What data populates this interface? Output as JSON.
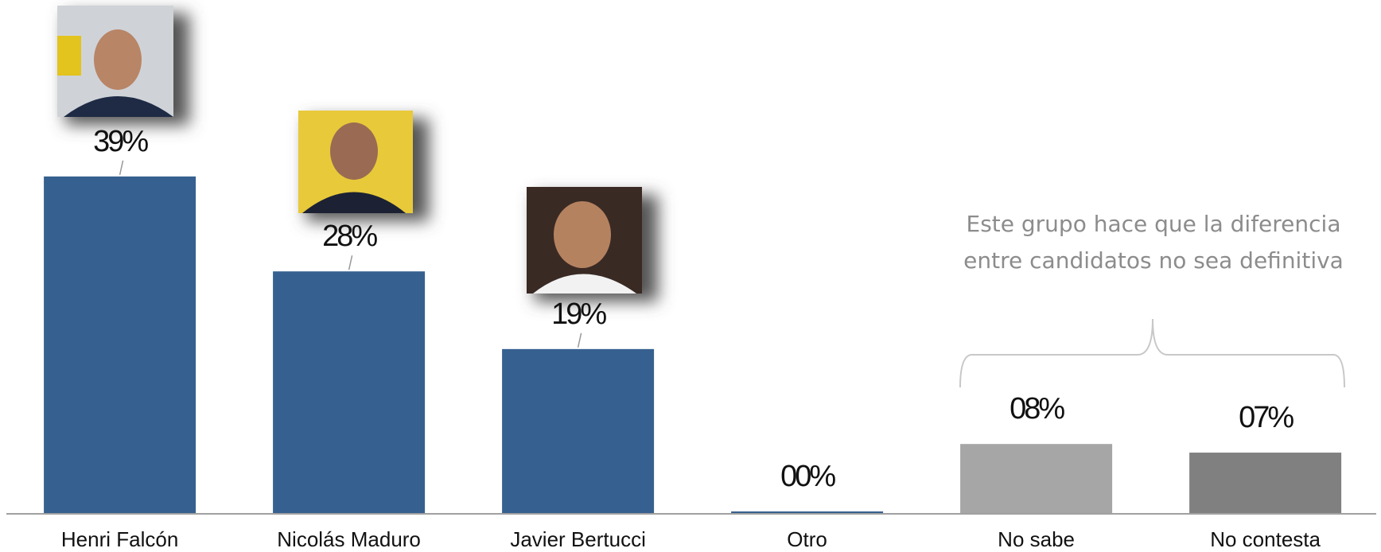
{
  "chart_data": {
    "type": "bar",
    "categories": [
      "Henri Falcón",
      "Nicolás Maduro",
      "Javier Bertucci",
      "Otro",
      "No sabe",
      "No contesta"
    ],
    "values": [
      39,
      28,
      19,
      0,
      8,
      7
    ],
    "value_labels": [
      "39%",
      "28%",
      "19%",
      "00%",
      "08%",
      "07%"
    ],
    "colors": [
      "#36608f",
      "#36608f",
      "#36608f",
      "#36608f",
      "#a6a6a6",
      "#808080"
    ],
    "annotation": [
      "Este grupo hace que la diferencia",
      "entre candidatos no sea definitiva"
    ]
  }
}
